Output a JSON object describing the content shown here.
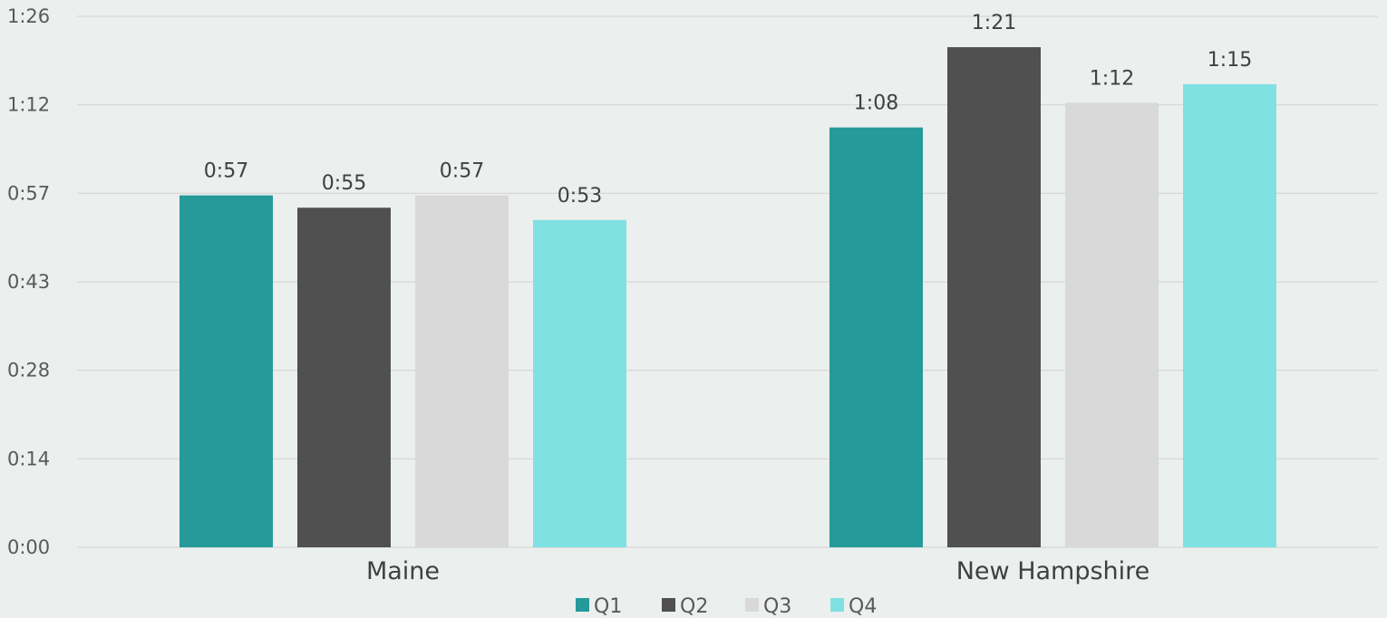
{
  "chart_data": {
    "type": "bar",
    "title": "",
    "xlabel": "",
    "ylabel": "",
    "categories": [
      "Maine",
      "New Hampshire"
    ],
    "y_unit": "minutes:seconds",
    "ylim": [
      0,
      86
    ],
    "y_ticks": [
      {
        "value": 0,
        "label": "0:00"
      },
      {
        "value": 14.33,
        "label": "0:14"
      },
      {
        "value": 28.67,
        "label": "0:28"
      },
      {
        "value": 43,
        "label": "0:43"
      },
      {
        "value": 57.33,
        "label": "0:57"
      },
      {
        "value": 71.67,
        "label": "1:12"
      },
      {
        "value": 86,
        "label": "1:26"
      }
    ],
    "grid": true,
    "legend_position": "bottom",
    "series": [
      {
        "name": "Q1",
        "color": "#259a9a",
        "values": [
          57,
          68
        ],
        "labels": [
          "0:57",
          "1:08"
        ]
      },
      {
        "name": "Q2",
        "color": "#505050",
        "values": [
          55,
          81
        ],
        "labels": [
          "0:55",
          "1:21"
        ]
      },
      {
        "name": "Q3",
        "color": "#d9d9d9",
        "values": [
          57,
          72
        ],
        "labels": [
          "0:57",
          "1:12"
        ]
      },
      {
        "name": "Q4",
        "color": "#7fe1e1",
        "values": [
          53,
          75
        ],
        "labels": [
          "0:53",
          "1:15"
        ]
      }
    ]
  }
}
